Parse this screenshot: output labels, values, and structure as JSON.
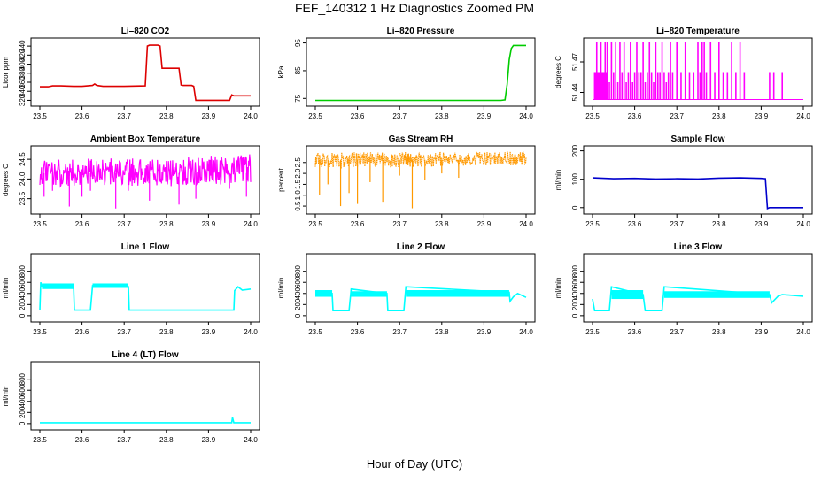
{
  "title": "FEF_140312  1 Hz Diagnostics Zoomed PM",
  "xlabel": "Hour of Day (UTC)",
  "chart_data": [
    {
      "type": "line",
      "title": "Li–820 CO2",
      "ylabel": "Licor ppm",
      "color": "#dd0000",
      "xlim": [
        23.5,
        24.0
      ],
      "xticks": [
        23.5,
        23.6,
        23.7,
        23.8,
        23.9,
        24.0
      ],
      "xtick_labels": [
        "23.5",
        "23.6",
        "23.7",
        "23.8",
        "23.9",
        "24.0"
      ],
      "ylim": [
        315,
        450
      ],
      "yticks": [
        320,
        340,
        360,
        380,
        400,
        420,
        440
      ],
      "ytick_labels": [
        "320",
        "340",
        "360",
        "380",
        "400",
        "420",
        "440"
      ],
      "series": [
        {
          "x": [
            23.5,
            23.52,
            23.53,
            23.55,
            23.58,
            23.6,
            23.625,
            23.63,
            23.635,
            23.65,
            23.68,
            23.7,
            23.75,
            23.755,
            23.76,
            23.78,
            23.785,
            23.79,
            23.83,
            23.835,
            23.84,
            23.86,
            23.865,
            23.87,
            23.9,
            23.95,
            23.955,
            23.96,
            23.98,
            24.0
          ],
          "y": [
            350,
            350,
            352,
            352,
            351,
            351,
            353,
            356,
            353,
            351,
            351,
            351,
            352,
            440,
            442,
            442,
            440,
            391,
            391,
            354,
            353,
            353,
            351,
            320,
            320,
            320,
            332,
            330,
            330,
            330
          ]
        }
      ]
    },
    {
      "type": "line",
      "title": "Li–820 Pressure",
      "ylabel": "kPa",
      "color": "#00cc00",
      "xlim": [
        23.5,
        24.0
      ],
      "xticks": [
        23.5,
        23.6,
        23.7,
        23.8,
        23.9,
        24.0
      ],
      "xtick_labels": [
        "23.5",
        "23.6",
        "23.7",
        "23.8",
        "23.9",
        "24.0"
      ],
      "ylim": [
        73.5,
        95.5
      ],
      "yticks": [
        75,
        85,
        95
      ],
      "ytick_labels": [
        "75",
        "85",
        "95"
      ],
      "series": [
        {
          "x": [
            23.5,
            23.6,
            23.7,
            23.8,
            23.9,
            23.94,
            23.95,
            23.955,
            23.96,
            23.965,
            23.97,
            24.0
          ],
          "y": [
            74.3,
            74.3,
            74.3,
            74.3,
            74.3,
            74.3,
            74.5,
            80,
            89,
            93,
            94.1,
            94.1
          ]
        }
      ]
    },
    {
      "type": "line",
      "title": "Li–820 Temperature",
      "ylabel": "degrees C",
      "color": "#ff00ff",
      "xlim": [
        23.5,
        24.0
      ],
      "xticks": [
        23.5,
        23.6,
        23.7,
        23.8,
        23.9,
        24.0
      ],
      "xtick_labels": [
        "23.5",
        "23.6",
        "23.7",
        "23.8",
        "23.9",
        "24.0"
      ],
      "ylim": [
        51.43,
        51.49
      ],
      "yticks": [
        51.44,
        51.47
      ],
      "ytick_labels": [
        "51.44",
        "51.47"
      ],
      "baseline": 51.433,
      "series": [
        {
          "spikes_x": [
            23.505,
            23.51,
            23.515,
            23.52,
            23.525,
            23.53,
            23.535,
            23.54,
            23.545,
            23.55,
            23.555,
            23.56,
            23.565,
            23.57,
            23.575,
            23.58,
            23.585,
            23.59,
            23.595,
            23.6,
            23.605,
            23.61,
            23.615,
            23.62,
            23.625,
            23.63,
            23.635,
            23.64,
            23.645,
            23.65,
            23.655,
            23.66,
            23.665,
            23.67,
            23.675,
            23.68,
            23.685,
            23.69,
            23.7,
            23.71,
            23.72,
            23.73,
            23.74,
            23.75,
            23.755,
            23.76,
            23.765,
            23.77,
            23.78,
            23.79,
            23.8,
            23.81,
            23.82,
            23.83,
            23.84,
            23.85,
            23.86,
            23.92,
            23.93,
            23.95
          ],
          "spikes_y": [
            51.46,
            51.49,
            51.45,
            51.49,
            51.46,
            51.49,
            51.49,
            51.45,
            51.49,
            51.46,
            51.49,
            51.45,
            51.49,
            51.46,
            51.49,
            51.45,
            51.46,
            51.49,
            51.45,
            51.46,
            51.49,
            51.46,
            51.46,
            51.49,
            51.45,
            51.46,
            51.49,
            51.46,
            51.45,
            51.49,
            51.46,
            51.46,
            51.49,
            51.46,
            51.45,
            51.46,
            51.49,
            51.46,
            51.49,
            51.46,
            51.49,
            51.46,
            51.46,
            51.49,
            51.46,
            51.49,
            51.49,
            51.46,
            51.49,
            51.46,
            51.49,
            51.46,
            51.46,
            51.49,
            51.46,
            51.49,
            51.46,
            51.46,
            51.46,
            51.46
          ]
        }
      ]
    },
    {
      "type": "line",
      "title": "Ambient Box Temperature",
      "ylabel": "degrees C",
      "color": "#ff00ff",
      "xlim": [
        23.5,
        24.0
      ],
      "xticks": [
        23.5,
        23.6,
        23.7,
        23.8,
        23.9,
        24.0
      ],
      "xtick_labels": [
        "23.5",
        "23.6",
        "23.7",
        "23.8",
        "23.9",
        "24.0"
      ],
      "ylim": [
        23.2,
        24.75
      ],
      "yticks": [
        23.5,
        24.0,
        24.5
      ],
      "ytick_labels": [
        "23.5",
        "24.0",
        "24.5"
      ],
      "series": [
        {
          "x": [
            23.5,
            23.55,
            23.6,
            23.65,
            23.7,
            23.75,
            23.8,
            23.85,
            23.9,
            23.95,
            24.0
          ],
          "low": [
            23.85,
            23.8,
            23.8,
            23.85,
            23.8,
            23.85,
            23.8,
            23.85,
            23.85,
            23.85,
            23.9
          ],
          "high": [
            24.45,
            24.5,
            24.5,
            24.55,
            24.5,
            24.55,
            24.5,
            24.55,
            24.6,
            24.6,
            24.65
          ],
          "dips_x": [
            23.51,
            23.53,
            23.57,
            23.6,
            23.62,
            23.68,
            23.71,
            23.76,
            23.83,
            23.87,
            23.95,
            23.99
          ],
          "dips_y": [
            23.55,
            23.7,
            23.3,
            23.55,
            23.7,
            23.25,
            23.7,
            23.45,
            23.35,
            23.5,
            23.75,
            23.55
          ]
        }
      ]
    },
    {
      "type": "scatter",
      "title": "Gas Stream RH",
      "ylabel": "percent",
      "color": "#ff9900",
      "xlim": [
        23.5,
        24.0
      ],
      "xticks": [
        23.5,
        23.6,
        23.7,
        23.8,
        23.9,
        24.0
      ],
      "xtick_labels": [
        "23.5",
        "23.6",
        "23.7",
        "23.8",
        "23.9",
        "24.0"
      ],
      "ylim": [
        0.3,
        3.1
      ],
      "yticks": [
        0.5,
        1.0,
        1.5,
        2.0,
        2.5
      ],
      "ytick_labels": [
        "0.5",
        "1.0",
        "1.5",
        "2.0",
        "2.5"
      ],
      "series": [
        {
          "x": [
            23.5,
            23.55,
            23.6,
            23.65,
            23.7,
            23.75,
            23.8,
            23.85,
            23.9,
            23.95,
            24.0
          ],
          "low": [
            2.3,
            2.2,
            2.25,
            2.3,
            2.25,
            2.3,
            2.3,
            2.35,
            2.35,
            2.35,
            2.4
          ],
          "high": [
            2.95,
            2.95,
            3.0,
            2.95,
            3.0,
            2.95,
            3.0,
            2.95,
            3.0,
            3.0,
            3.0
          ],
          "dips_x": [
            23.51,
            23.53,
            23.56,
            23.58,
            23.6,
            23.63,
            23.66,
            23.7,
            23.73,
            23.76,
            23.8,
            23.84
          ],
          "dips_y": [
            1.0,
            1.5,
            0.5,
            1.1,
            0.6,
            1.6,
            0.7,
            1.9,
            0.4,
            1.7,
            2.0,
            1.8
          ]
        }
      ]
    },
    {
      "type": "line",
      "title": "Sample Flow",
      "ylabel": "ml/min",
      "color": "#0000cc",
      "xlim": [
        23.5,
        24.0
      ],
      "xticks": [
        23.5,
        23.6,
        23.7,
        23.8,
        23.9,
        24.0
      ],
      "xtick_labels": [
        "23.5",
        "23.6",
        "23.7",
        "23.8",
        "23.9",
        "24.0"
      ],
      "ylim": [
        -10,
        205
      ],
      "yticks": [
        0,
        100,
        200
      ],
      "ytick_labels": [
        "0",
        "100",
        "200"
      ],
      "series": [
        {
          "x": [
            23.5,
            23.55,
            23.6,
            23.65,
            23.7,
            23.75,
            23.8,
            23.85,
            23.9,
            23.91,
            23.915,
            23.92,
            23.95,
            24.0
          ],
          "y": [
            105,
            102,
            103,
            101,
            102,
            101,
            104,
            105,
            103,
            102,
            -3,
            0,
            0,
            0
          ]
        }
      ]
    },
    {
      "type": "line",
      "title": "Line 1 Flow",
      "ylabel": "ml/min",
      "color": "#00ffff",
      "xlim": [
        23.5,
        24.0
      ],
      "xticks": [
        23.5,
        23.6,
        23.7,
        23.8,
        23.9,
        24.0
      ],
      "xtick_labels": [
        "23.5",
        "23.6",
        "23.7",
        "23.8",
        "23.9",
        "24.0"
      ],
      "ylim": [
        -50,
        1050
      ],
      "yticks": [
        0,
        200,
        400,
        600,
        800
      ],
      "ytick_labels": [
        "0",
        "200",
        "400",
        "600",
        "800"
      ],
      "series": [
        {
          "x": [
            23.5,
            23.502,
            23.505,
            23.58,
            23.582,
            23.62,
            23.625,
            23.71,
            23.712,
            23.96,
            23.962,
            23.97,
            23.98,
            24.0
          ],
          "y": [
            100,
            600,
            520,
            520,
            100,
            100,
            540,
            520,
            100,
            100,
            450,
            520,
            460,
            480
          ],
          "band": [
            [
              23.505,
              23.58,
              480,
              580
            ],
            [
              23.625,
              23.71,
              500,
              580
            ]
          ]
        }
      ]
    },
    {
      "type": "line",
      "title": "Line 2 Flow",
      "ylabel": "ml/min",
      "color": "#00ffff",
      "xlim": [
        23.5,
        24.0
      ],
      "xticks": [
        23.5,
        23.6,
        23.7,
        23.8,
        23.9,
        24.0
      ],
      "xtick_labels": [
        "23.5",
        "23.6",
        "23.7",
        "23.8",
        "23.9",
        "24.0"
      ],
      "ylim": [
        -50,
        1050
      ],
      "yticks": [
        0,
        200,
        400,
        600,
        800
      ],
      "ytick_labels": [
        "0",
        "200",
        "400",
        "600",
        "800"
      ],
      "series": [
        {
          "x": [
            23.5,
            23.54,
            23.542,
            23.58,
            23.585,
            23.67,
            23.672,
            23.71,
            23.715,
            23.96,
            23.962,
            23.97,
            23.98,
            24.0
          ],
          "y": [
            400,
            400,
            90,
            90,
            480,
            400,
            90,
            90,
            520,
            420,
            260,
            340,
            400,
            330
          ],
          "band": [
            [
              23.5,
              23.54,
              340,
              460
            ],
            [
              23.585,
              23.67,
              340,
              440
            ],
            [
              23.715,
              23.96,
              340,
              460
            ]
          ]
        }
      ]
    },
    {
      "type": "line",
      "title": "Line 3 Flow",
      "ylabel": "ml/min",
      "color": "#00ffff",
      "xlim": [
        23.5,
        24.0
      ],
      "xticks": [
        23.5,
        23.6,
        23.7,
        23.8,
        23.9,
        24.0
      ],
      "xtick_labels": [
        "23.5",
        "23.6",
        "23.7",
        "23.8",
        "23.9",
        "24.0"
      ],
      "ylim": [
        -50,
        1050
      ],
      "yticks": [
        0,
        200,
        400,
        600,
        800
      ],
      "ytick_labels": [
        "0",
        "200",
        "400",
        "600",
        "800"
      ],
      "series": [
        {
          "x": [
            23.5,
            23.505,
            23.54,
            23.545,
            23.62,
            23.625,
            23.665,
            23.67,
            23.92,
            23.925,
            23.94,
            23.95,
            24.0
          ],
          "y": [
            300,
            90,
            90,
            520,
            380,
            90,
            90,
            520,
            380,
            230,
            350,
            380,
            350
          ],
          "band": [
            [
              23.545,
              23.62,
              300,
              460
            ],
            [
              23.67,
              23.92,
              320,
              440
            ]
          ]
        }
      ]
    },
    {
      "type": "line",
      "title": "Line 4 (LT) Flow",
      "ylabel": "ml/min",
      "color": "#00ffff",
      "xlim": [
        23.5,
        24.0
      ],
      "xticks": [
        23.5,
        23.6,
        23.7,
        23.8,
        23.9,
        24.0
      ],
      "xtick_labels": [
        "23.5",
        "23.6",
        "23.7",
        "23.8",
        "23.9",
        "24.0"
      ],
      "ylim": [
        -50,
        1050
      ],
      "yticks": [
        0,
        200,
        400,
        600,
        800
      ],
      "ytick_labels": [
        "0",
        "200",
        "400",
        "600",
        "800"
      ],
      "series": [
        {
          "x": [
            23.5,
            23.6,
            23.7,
            23.8,
            23.9,
            23.955,
            23.957,
            23.96,
            24.0
          ],
          "y": [
            15,
            15,
            15,
            15,
            15,
            15,
            110,
            15,
            15
          ]
        }
      ]
    }
  ]
}
